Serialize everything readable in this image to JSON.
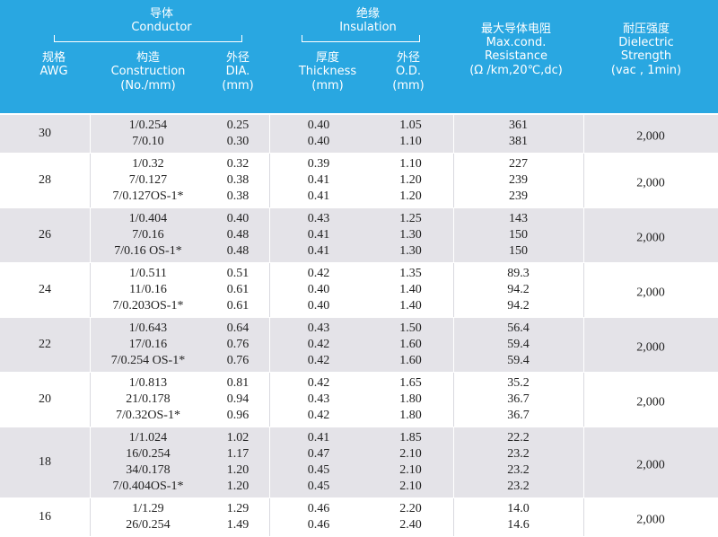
{
  "header": {
    "conductor_cn": "导体",
    "conductor_en": "Conductor",
    "insulation_cn": "绝缘",
    "insulation_en": "Insulation",
    "awg_cn": "规格",
    "awg_en": "AWG",
    "construction_cn": "构造",
    "construction_en": "Construction",
    "construction_unit": "(No./mm)",
    "dia_cn": "外径",
    "dia_en": "DIA.",
    "dia_unit": "(mm)",
    "thickness_cn": "厚度",
    "thickness_en": "Thickness",
    "thickness_unit": "(mm)",
    "od_cn": "外径",
    "od_en": "O.D.",
    "od_unit": "(mm)",
    "resistance_cn": "最大导体电阻",
    "resistance_en1": "Max.cond.",
    "resistance_en2": "Resistance",
    "resistance_unit": "(Ω /km,20℃,dc)",
    "dielectric_cn": "耐压强度",
    "dielectric_en1": "Dielectric",
    "dielectric_en2": "Strength",
    "dielectric_unit": "(vac , 1min)"
  },
  "rows": [
    {
      "awg": "30",
      "lines": [
        {
          "construction": "1/0.254",
          "dia": "0.25",
          "thickness": "0.40",
          "od": "1.05",
          "resistance": "361"
        },
        {
          "construction": "7/0.10",
          "dia": "0.30",
          "thickness": "0.40",
          "od": "1.10",
          "resistance": "381"
        }
      ],
      "dielectric": "2,000"
    },
    {
      "awg": "28",
      "lines": [
        {
          "construction": "1/0.32",
          "dia": "0.32",
          "thickness": "0.39",
          "od": "1.10",
          "resistance": "227"
        },
        {
          "construction": "7/0.127",
          "dia": "0.38",
          "thickness": "0.41",
          "od": "1.20",
          "resistance": "239"
        },
        {
          "construction": "7/0.127OS-1*",
          "dia": "0.38",
          "thickness": "0.41",
          "od": "1.20",
          "resistance": "239"
        }
      ],
      "dielectric": "2,000"
    },
    {
      "awg": "26",
      "lines": [
        {
          "construction": "1/0.404",
          "dia": "0.40",
          "thickness": "0.43",
          "od": "1.25",
          "resistance": "143"
        },
        {
          "construction": "7/0.16",
          "dia": "0.48",
          "thickness": "0.41",
          "od": "1.30",
          "resistance": "150"
        },
        {
          "construction": "7/0.16 OS-1*",
          "dia": "0.48",
          "thickness": "0.41",
          "od": "1.30",
          "resistance": "150"
        }
      ],
      "dielectric": "2,000"
    },
    {
      "awg": "24",
      "lines": [
        {
          "construction": "1/0.511",
          "dia": "0.51",
          "thickness": "0.42",
          "od": "1.35",
          "resistance": "89.3"
        },
        {
          "construction": "11/0.16",
          "dia": "0.61",
          "thickness": "0.40",
          "od": "1.40",
          "resistance": "94.2"
        },
        {
          "construction": "7/0.203OS-1*",
          "dia": "0.61",
          "thickness": "0.40",
          "od": "1.40",
          "resistance": "94.2"
        }
      ],
      "dielectric": "2,000"
    },
    {
      "awg": "22",
      "lines": [
        {
          "construction": "1/0.643",
          "dia": "0.64",
          "thickness": "0.43",
          "od": "1.50",
          "resistance": "56.4"
        },
        {
          "construction": "17/0.16",
          "dia": "0.76",
          "thickness": "0.42",
          "od": "1.60",
          "resistance": "59.4"
        },
        {
          "construction": "7/0.254 OS-1*",
          "dia": "0.76",
          "thickness": "0.42",
          "od": "1.60",
          "resistance": "59.4"
        }
      ],
      "dielectric": "2,000"
    },
    {
      "awg": "20",
      "lines": [
        {
          "construction": "1/0.813",
          "dia": "0.81",
          "thickness": "0.42",
          "od": "1.65",
          "resistance": "35.2"
        },
        {
          "construction": "21/0.178",
          "dia": "0.94",
          "thickness": "0.43",
          "od": "1.80",
          "resistance": "36.7"
        },
        {
          "construction": "7/0.32OS-1*",
          "dia": "0.96",
          "thickness": "0.42",
          "od": "1.80",
          "resistance": "36.7"
        }
      ],
      "dielectric": "2,000"
    },
    {
      "awg": "18",
      "lines": [
        {
          "construction": "1/1.024",
          "dia": "1.02",
          "thickness": "0.41",
          "od": "1.85",
          "resistance": "22.2"
        },
        {
          "construction": "16/0.254",
          "dia": "1.17",
          "thickness": "0.47",
          "od": "2.10",
          "resistance": "23.2"
        },
        {
          "construction": "34/0.178",
          "dia": "1.20",
          "thickness": "0.45",
          "od": "2.10",
          "resistance": "23.2"
        },
        {
          "construction": "7/0.404OS-1*",
          "dia": "1.20",
          "thickness": "0.45",
          "od": "2.10",
          "resistance": "23.2"
        }
      ],
      "dielectric": "2,000"
    },
    {
      "awg": "16",
      "lines": [
        {
          "construction": "1/1.29",
          "dia": "1.29",
          "thickness": "0.46",
          "od": "2.20",
          "resistance": "14.0"
        },
        {
          "construction": "26/0.254",
          "dia": "1.49",
          "thickness": "0.46",
          "od": "2.40",
          "resistance": "14.6"
        }
      ],
      "dielectric": "2,000"
    }
  ]
}
